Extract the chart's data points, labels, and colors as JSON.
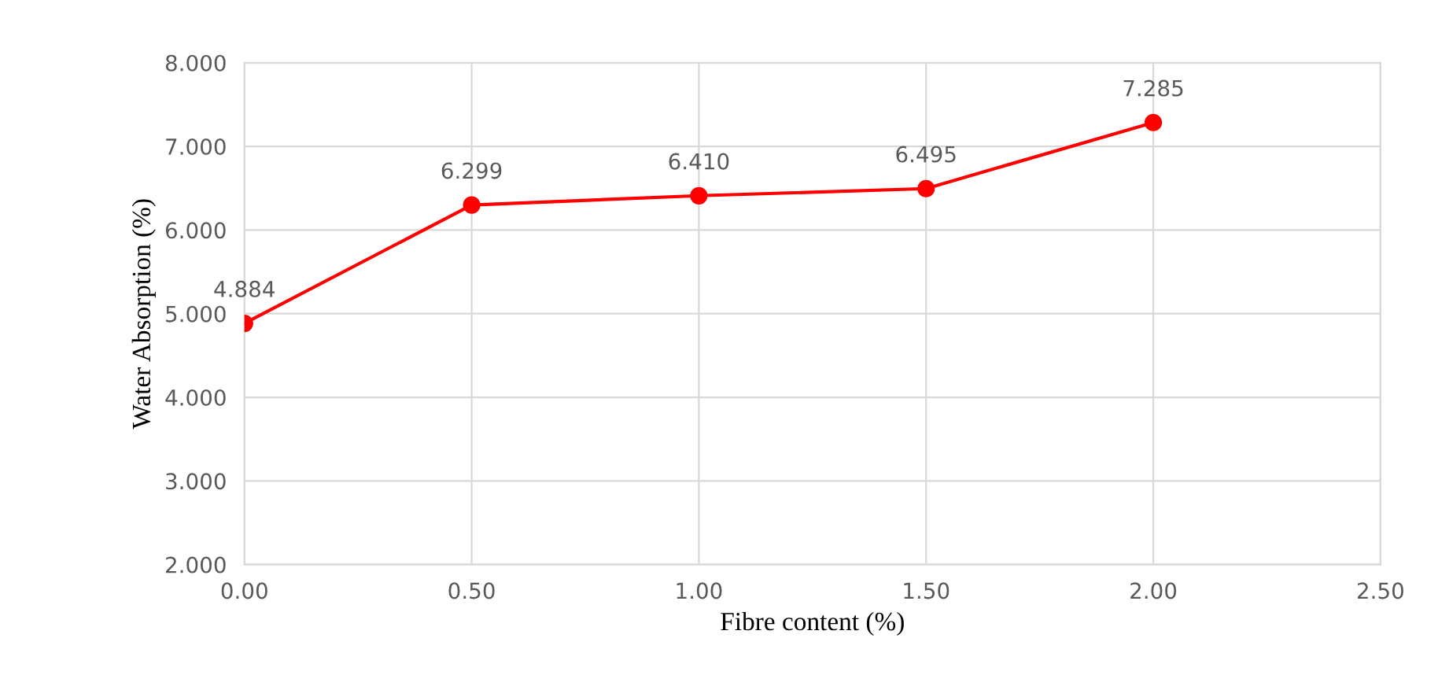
{
  "chart_data": {
    "type": "line",
    "xlabel": "Fibre content (%)",
    "ylabel": "Water Absorption (%)",
    "x": [
      0,
      0.5,
      1.0,
      1.5,
      2.0
    ],
    "series": [
      {
        "color": "#ff0000",
        "values": [
          4.884,
          6.299,
          6.41,
          6.495,
          7.285
        ]
      }
    ],
    "value_labels": [
      "4.884",
      "6.299",
      "6.410",
      "6.495",
      "7.285"
    ],
    "xlim": [
      0,
      2.5
    ],
    "xticks": [
      {
        "value": 0,
        "label": "0.00"
      },
      {
        "value": 0.5,
        "label": "0.50"
      },
      {
        "value": 1.0,
        "label": "1.00"
      },
      {
        "value": 1.5,
        "label": "1.50"
      },
      {
        "value": 2.0,
        "label": "2.00"
      },
      {
        "value": 2.5,
        "label": "2.50"
      }
    ],
    "ylim": [
      2,
      8
    ],
    "yticks": [
      {
        "value": 2,
        "label": "2.000"
      },
      {
        "value": 3,
        "label": "3.000"
      },
      {
        "value": 4,
        "label": "4.000"
      },
      {
        "value": 5,
        "label": "5.000"
      },
      {
        "value": 6,
        "label": "6.000"
      },
      {
        "value": 7,
        "label": "7.000"
      },
      {
        "value": 8,
        "label": "8.000"
      }
    ],
    "grid": true,
    "marker": "circle",
    "line_style": "solid"
  }
}
